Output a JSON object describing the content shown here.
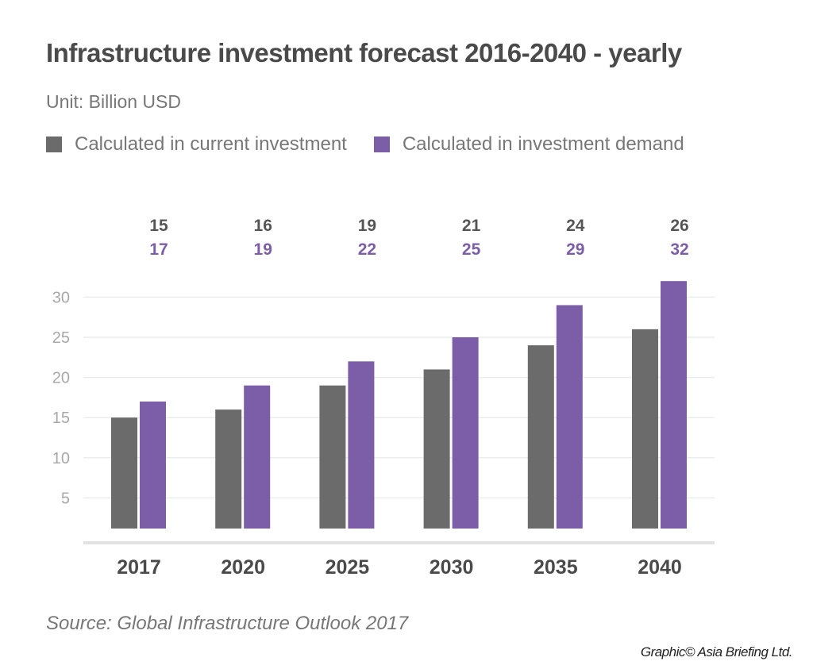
{
  "chart_data": {
    "type": "bar",
    "title": "Infrastructure investment forecast 2016-2040 - yearly",
    "subtitle": "Unit: Billion USD",
    "categories": [
      "2017",
      "2020",
      "2025",
      "2030",
      "2035",
      "2040"
    ],
    "series": [
      {
        "name": "Calculated in current investment",
        "values": [
          15,
          16,
          19,
          21,
          24,
          26
        ],
        "color": "#6b6b6b"
      },
      {
        "name": "Calculated in investment demand",
        "values": [
          17,
          19,
          22,
          25,
          29,
          32
        ],
        "color": "#7b5ea7"
      }
    ],
    "yticks": [
      "5",
      "10",
      "15",
      "20",
      "25",
      "30"
    ],
    "ylim": [
      0,
      30
    ],
    "grid": true,
    "legend": "top-left",
    "source": "Source: Global Infrastructure Outlook 2017",
    "credit": "Graphic© Asia Briefing Ltd."
  }
}
